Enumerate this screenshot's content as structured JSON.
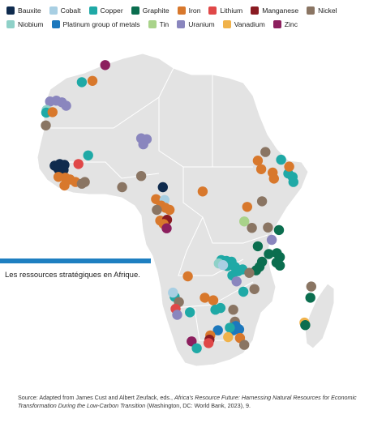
{
  "legend": [
    {
      "key": "bauxite",
      "label": "Bauxite",
      "color": "#0f2b4e"
    },
    {
      "key": "cobalt",
      "label": "Cobalt",
      "color": "#a8cfe3"
    },
    {
      "key": "copper",
      "label": "Copper",
      "color": "#1fa9a6"
    },
    {
      "key": "graphite",
      "label": "Graphite",
      "color": "#0b6e4f"
    },
    {
      "key": "iron",
      "label": "Iron",
      "color": "#d8782c"
    },
    {
      "key": "lithium",
      "label": "Lithium",
      "color": "#e04848"
    },
    {
      "key": "manganese",
      "label": "Manganese",
      "color": "#8a1b22"
    },
    {
      "key": "nickel",
      "label": "Nickel",
      "color": "#8a7563"
    },
    {
      "key": "niobium",
      "label": "Niobium",
      "color": "#8fd1c8"
    },
    {
      "key": "pgm",
      "label": "Platinum group of metals",
      "color": "#1c78bd"
    },
    {
      "key": "tin",
      "label": "Tin",
      "color": "#a9d38a"
    },
    {
      "key": "uranium",
      "label": "Uranium",
      "color": "#8a86be"
    },
    {
      "key": "vanadium",
      "label": "Vanadium",
      "color": "#f0b24a"
    },
    {
      "key": "zinc",
      "label": "Zinc",
      "color": "#8c1f5e"
    }
  ],
  "caption": "Les ressources stratégiques en Afrique.",
  "source": {
    "prefix": "Source: Adapted from James Cust and Albert Zeufack, eds., ",
    "title": "Africa's Resource Future: Harnessing Natural Resources for Economic Transformation During the Low-Carbon Transition",
    "suffix": " (Washington, DC: World Bank, 2023), 9."
  },
  "points": [
    {
      "m": "zinc",
      "lon": -2.0,
      "lat": 35.3
    },
    {
      "m": "copper",
      "lon": -7.5,
      "lat": 31.3
    },
    {
      "m": "iron",
      "lon": -5.0,
      "lat": 31.6
    },
    {
      "m": "uranium",
      "lon": -15.0,
      "lat": 26.8
    },
    {
      "m": "uranium",
      "lon": -13.5,
      "lat": 27.0
    },
    {
      "m": "uranium",
      "lon": -12.2,
      "lat": 26.6
    },
    {
      "m": "uranium",
      "lon": -11.2,
      "lat": 25.8
    },
    {
      "m": "niobium",
      "lon": -15.8,
      "lat": 24.8
    },
    {
      "m": "copper",
      "lon": -15.9,
      "lat": 24.2
    },
    {
      "m": "iron",
      "lon": -14.4,
      "lat": 24.3
    },
    {
      "m": "nickel",
      "lon": -16.0,
      "lat": 21.2
    },
    {
      "m": "uranium",
      "lon": 6.5,
      "lat": 18.2
    },
    {
      "m": "uranium",
      "lon": 7.8,
      "lat": 18.0
    },
    {
      "m": "uranium",
      "lon": 7.0,
      "lat": 16.8
    },
    {
      "m": "copper",
      "lon": -6.0,
      "lat": 14.2
    },
    {
      "m": "lithium",
      "lon": -8.3,
      "lat": 12.2
    },
    {
      "m": "bauxite",
      "lon": -13.9,
      "lat": 11.8
    },
    {
      "m": "bauxite",
      "lon": -12.7,
      "lat": 12.2
    },
    {
      "m": "bauxite",
      "lon": -11.6,
      "lat": 12.0
    },
    {
      "m": "bauxite",
      "lon": -13.0,
      "lat": 11.0
    },
    {
      "m": "bauxite",
      "lon": -11.8,
      "lat": 10.8
    },
    {
      "m": "iron",
      "lon": -13.0,
      "lat": 9.2
    },
    {
      "m": "iron",
      "lon": -11.4,
      "lat": 9.0
    },
    {
      "m": "iron",
      "lon": -10.3,
      "lat": 8.6
    },
    {
      "m": "iron",
      "lon": -9.0,
      "lat": 8.0
    },
    {
      "m": "iron",
      "lon": -11.6,
      "lat": 7.2
    },
    {
      "m": "nickel",
      "lon": -7.5,
      "lat": 7.6
    },
    {
      "m": "nickel",
      "lon": -6.8,
      "lat": 8.0
    },
    {
      "m": "nickel",
      "lon": 2.0,
      "lat": 6.8
    },
    {
      "m": "nickel",
      "lon": 6.5,
      "lat": 9.4
    },
    {
      "m": "bauxite",
      "lon": 11.6,
      "lat": 6.8
    },
    {
      "m": "iron",
      "lon": 10.0,
      "lat": 4.0
    },
    {
      "m": "cobalt",
      "lon": 12.0,
      "lat": 3.8
    },
    {
      "m": "iron",
      "lon": 11.2,
      "lat": 2.5
    },
    {
      "m": "iron",
      "lon": 12.2,
      "lat": 2.0
    },
    {
      "m": "iron",
      "lon": 13.2,
      "lat": 1.5
    },
    {
      "m": "nickel",
      "lon": 10.2,
      "lat": 1.5
    },
    {
      "m": "iron",
      "lon": 11.0,
      "lat": -1.0
    },
    {
      "m": "manganese",
      "lon": 12.6,
      "lat": -0.8
    },
    {
      "m": "iron",
      "lon": 11.8,
      "lat": -1.8
    },
    {
      "m": "zinc",
      "lon": 12.5,
      "lat": -2.8
    },
    {
      "m": "iron",
      "lon": 21.0,
      "lat": 5.8
    },
    {
      "m": "iron",
      "lon": 31.5,
      "lat": 2.2
    },
    {
      "m": "nickel",
      "lon": 35.0,
      "lat": 3.5
    },
    {
      "m": "tin",
      "lon": 30.8,
      "lat": -1.2
    },
    {
      "m": "nickel",
      "lon": 32.6,
      "lat": -2.7
    },
    {
      "m": "nickel",
      "lon": 36.4,
      "lat": -2.6
    },
    {
      "m": "graphite",
      "lon": 39.0,
      "lat": -3.2
    },
    {
      "m": "iron",
      "lon": 34.8,
      "lat": 11.0
    },
    {
      "m": "iron",
      "lon": 34.0,
      "lat": 13.0
    },
    {
      "m": "iron",
      "lon": 37.5,
      "lat": 10.2
    },
    {
      "m": "iron",
      "lon": 37.8,
      "lat": 8.8
    },
    {
      "m": "copper",
      "lon": 39.5,
      "lat": 13.2
    },
    {
      "m": "copper",
      "lon": 41.2,
      "lat": 10.0
    },
    {
      "m": "copper",
      "lon": 42.2,
      "lat": 9.2
    },
    {
      "m": "copper",
      "lon": 42.4,
      "lat": 8.0
    },
    {
      "m": "iron",
      "lon": 41.4,
      "lat": 11.6
    },
    {
      "m": "nickel",
      "lon": 35.8,
      "lat": 15.0
    },
    {
      "m": "uranium",
      "lon": 37.3,
      "lat": -5.5
    },
    {
      "m": "graphite",
      "lon": 34.0,
      "lat": -7.0
    },
    {
      "m": "graphite",
      "lon": 36.6,
      "lat": -8.8
    },
    {
      "m": "graphite",
      "lon": 38.5,
      "lat": -8.6
    },
    {
      "m": "graphite",
      "lon": 39.2,
      "lat": -9.5
    },
    {
      "m": "graphite",
      "lon": 38.4,
      "lat": -10.8
    },
    {
      "m": "graphite",
      "lon": 39.2,
      "lat": -11.5
    },
    {
      "m": "graphite",
      "lon": 35.0,
      "lat": -10.6
    },
    {
      "m": "graphite",
      "lon": 34.4,
      "lat": -11.8
    },
    {
      "m": "graphite",
      "lon": 33.6,
      "lat": -12.6
    },
    {
      "m": "copper",
      "lon": 25.4,
      "lat": -10.2
    },
    {
      "m": "copper",
      "lon": 26.6,
      "lat": -10.4
    },
    {
      "m": "copper",
      "lon": 27.8,
      "lat": -10.6
    },
    {
      "m": "copper",
      "lon": 26.8,
      "lat": -11.6
    },
    {
      "m": "copper",
      "lon": 28.6,
      "lat": -11.8
    },
    {
      "m": "copper",
      "lon": 29.4,
      "lat": -12.8
    },
    {
      "m": "niobium",
      "lon": 24.8,
      "lat": -11.0
    },
    {
      "m": "cobalt",
      "lon": 25.8,
      "lat": -11.4
    },
    {
      "m": "copper",
      "lon": 30.4,
      "lat": -12.4
    },
    {
      "m": "copper",
      "lon": 28.0,
      "lat": -13.8
    },
    {
      "m": "nickel",
      "lon": 32.0,
      "lat": -13.2
    },
    {
      "m": "uranium",
      "lon": 29.0,
      "lat": -15.2
    },
    {
      "m": "copper",
      "lon": 30.6,
      "lat": -17.6
    },
    {
      "m": "nickel",
      "lon": 33.2,
      "lat": -17.0
    },
    {
      "m": "iron",
      "lon": 17.5,
      "lat": -14.0
    },
    {
      "m": "copper",
      "lon": 14.4,
      "lat": -18.8
    },
    {
      "m": "cobalt",
      "lon": 14.0,
      "lat": -17.8
    },
    {
      "m": "nickel",
      "lon": 15.4,
      "lat": -20.0
    },
    {
      "m": "lithium",
      "lon": 14.6,
      "lat": -21.6
    },
    {
      "m": "uranium",
      "lon": 15.0,
      "lat": -23.0
    },
    {
      "m": "copper",
      "lon": 18.0,
      "lat": -22.4
    },
    {
      "m": "iron",
      "lon": 21.5,
      "lat": -19.0
    },
    {
      "m": "iron",
      "lon": 23.5,
      "lat": -19.6
    },
    {
      "m": "copper",
      "lon": 25.2,
      "lat": -21.4
    },
    {
      "m": "copper",
      "lon": 24.0,
      "lat": -21.8
    },
    {
      "m": "nickel",
      "lon": 28.2,
      "lat": -21.8
    },
    {
      "m": "nickel",
      "lon": 28.6,
      "lat": -24.6
    },
    {
      "m": "pgm",
      "lon": 28.8,
      "lat": -25.6
    },
    {
      "m": "pgm",
      "lon": 29.6,
      "lat": -26.4
    },
    {
      "m": "pgm",
      "lon": 28.2,
      "lat": -26.6
    },
    {
      "m": "copper",
      "lon": 27.4,
      "lat": -26.0
    },
    {
      "m": "pgm",
      "lon": 24.6,
      "lat": -26.6
    },
    {
      "m": "iron",
      "lon": 22.8,
      "lat": -27.8
    },
    {
      "m": "manganese",
      "lon": 22.6,
      "lat": -28.8
    },
    {
      "m": "lithium",
      "lon": 22.4,
      "lat": -29.6
    },
    {
      "m": "vanadium",
      "lon": 27.0,
      "lat": -28.2
    },
    {
      "m": "iron",
      "lon": 29.8,
      "lat": -28.4
    },
    {
      "m": "zinc",
      "lon": 18.4,
      "lat": -29.2
    },
    {
      "m": "copper",
      "lon": 19.6,
      "lat": -30.8
    },
    {
      "m": "nickel",
      "lon": 30.8,
      "lat": -30.0
    },
    {
      "m": "nickel",
      "lon": 46.6,
      "lat": -16.4
    },
    {
      "m": "graphite",
      "lon": 46.4,
      "lat": -19.0
    },
    {
      "m": "vanadium",
      "lon": 45.0,
      "lat": -24.8
    },
    {
      "m": "graphite",
      "lon": 45.2,
      "lat": -25.4
    }
  ]
}
